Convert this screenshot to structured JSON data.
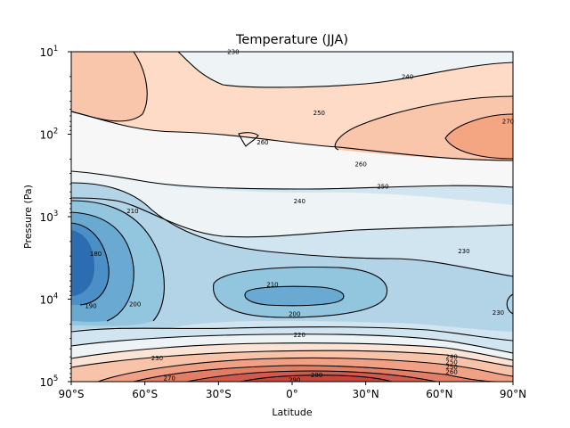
{
  "chart_data": {
    "type": "contour",
    "title": "Temperature (JJA)",
    "xlabel": "Latitude",
    "ylabel": "Pressure (Pa)",
    "xlim": [
      -90,
      90
    ],
    "ylim": [
      100000,
      10
    ],
    "yscale": "log",
    "x_ticks": [
      {
        "value": -90,
        "label": "90°S"
      },
      {
        "value": -60,
        "label": "60°S"
      },
      {
        "value": -30,
        "label": "30°S"
      },
      {
        "value": 0,
        "label": "0°"
      },
      {
        "value": 30,
        "label": "30°N"
      },
      {
        "value": 60,
        "label": "60°N"
      },
      {
        "value": 90,
        "label": "90°N"
      }
    ],
    "y_ticks": [
      {
        "value": 10,
        "base": "10",
        "exp": "1"
      },
      {
        "value": 100,
        "base": "10",
        "exp": "2"
      },
      {
        "value": 1000,
        "base": "10",
        "exp": "3"
      },
      {
        "value": 10000,
        "base": "10",
        "exp": "4"
      },
      {
        "value": 100000,
        "base": "10",
        "exp": "5"
      }
    ],
    "contour_levels": [
      180,
      190,
      200,
      210,
      220,
      230,
      240,
      250,
      260,
      270,
      280,
      290
    ],
    "colormap": "RdBu_r",
    "contour_labels": [
      {
        "text": "230",
        "lat": -24,
        "p": 10
      },
      {
        "text": "240",
        "lat": 47,
        "p": 20
      },
      {
        "text": "250",
        "lat": 11,
        "p": 55
      },
      {
        "text": "270",
        "lat": 88,
        "p": 70
      },
      {
        "text": "260",
        "lat": -12,
        "p": 125
      },
      {
        "text": "260",
        "lat": 28,
        "p": 230
      },
      {
        "text": "250",
        "lat": 37,
        "p": 430
      },
      {
        "text": "240",
        "lat": 3,
        "p": 650
      },
      {
        "text": "210",
        "lat": -65,
        "p": 850
      },
      {
        "text": "230",
        "lat": 70,
        "p": 2600
      },
      {
        "text": "180",
        "lat": -80,
        "p": 2800
      },
      {
        "text": "210",
        "lat": -8,
        "p": 6600
      },
      {
        "text": "190",
        "lat": -82,
        "p": 12000
      },
      {
        "text": "200",
        "lat": -64,
        "p": 11500
      },
      {
        "text": "200",
        "lat": 1,
        "p": 15000
      },
      {
        "text": "230",
        "lat": 84,
        "p": 14500
      },
      {
        "text": "220",
        "lat": 3,
        "p": 27000
      },
      {
        "text": "230",
        "lat": -55,
        "p": 52000
      },
      {
        "text": "240",
        "lat": 65,
        "p": 50000
      },
      {
        "text": "250",
        "lat": 65,
        "p": 58000
      },
      {
        "text": "250",
        "lat": 65,
        "p": 66000
      },
      {
        "text": "260",
        "lat": 65,
        "p": 76000
      },
      {
        "text": "270",
        "lat": -50,
        "p": 90000
      },
      {
        "text": "280",
        "lat": 10,
        "p": 83000
      },
      {
        "text": "290",
        "lat": 1,
        "p": 95000
      }
    ]
  }
}
